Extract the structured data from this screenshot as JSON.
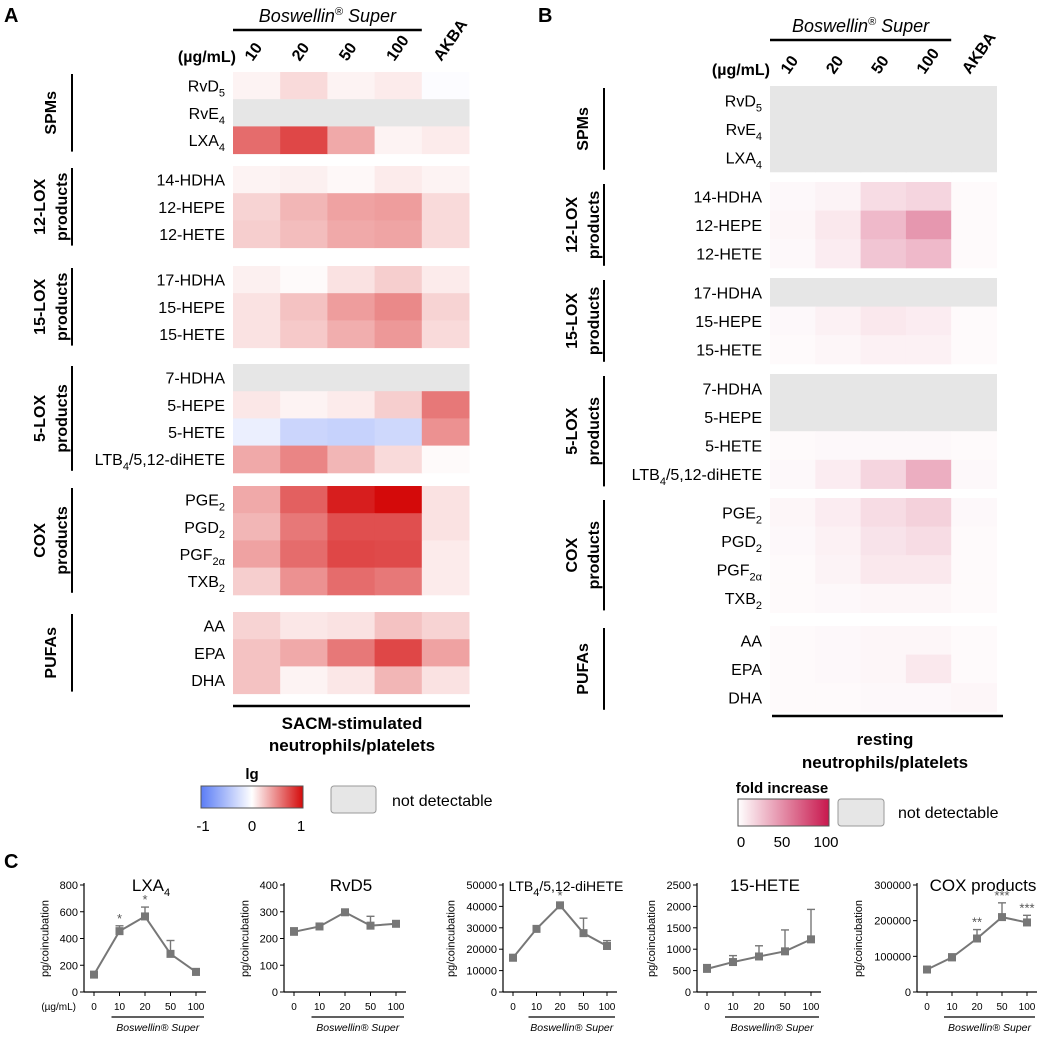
{
  "panel_labels": {
    "a": "A",
    "b": "B",
    "c": "C"
  },
  "header": {
    "brand": "Boswellin",
    "reg": "®",
    "brand_suffix": " Super",
    "unit": "(µg/mL)",
    "conc": [
      "10",
      "20",
      "50",
      "100"
    ],
    "akba": "AKBA"
  },
  "groups": [
    {
      "label": [
        "SPMs"
      ],
      "rows": [
        [
          "RvD",
          "5"
        ],
        [
          "RvE",
          "4"
        ],
        [
          "LXA",
          "4"
        ]
      ]
    },
    {
      "label": [
        "12-LOX",
        "products"
      ],
      "rows": [
        [
          "14-HDHA",
          ""
        ],
        [
          "12-HEPE",
          ""
        ],
        [
          "12-HETE",
          ""
        ]
      ]
    },
    {
      "label": [
        "15-LOX",
        "products"
      ],
      "rows": [
        [
          "17-HDHA",
          ""
        ],
        [
          "15-HEPE",
          ""
        ],
        [
          "15-HETE",
          ""
        ]
      ]
    },
    {
      "label": [
        "5-LOX",
        "products"
      ],
      "rows": [
        [
          "7-HDHA",
          ""
        ],
        [
          "5-HEPE",
          ""
        ],
        [
          "5-HETE",
          ""
        ],
        [
          "LTB",
          "4",
          "/5,12-diHETE"
        ]
      ]
    },
    {
      "label": [
        "COX",
        "products"
      ],
      "rows": [
        [
          "PGE",
          "2"
        ],
        [
          "PGD",
          "2"
        ],
        [
          "PGF",
          "2α"
        ],
        [
          "TXB",
          "2"
        ]
      ]
    },
    {
      "label": [
        "PUFAs"
      ],
      "rows": [
        [
          "AA",
          ""
        ],
        [
          "EPA",
          ""
        ],
        [
          "DHA",
          ""
        ]
      ]
    }
  ],
  "panel_a": {
    "footer": [
      "SACM-stimulated",
      "neutrophils/platelets"
    ],
    "legend_title": "lg",
    "legend_ticks": [
      "-1",
      "0",
      "1"
    ],
    "nd_label": "not detectable"
  },
  "panel_b": {
    "footer": [
      "resting",
      "neutrophils/platelets"
    ],
    "legend_title": "fold increase",
    "legend_ticks": [
      "0",
      "50",
      "100"
    ],
    "nd_label": "not detectable"
  },
  "colors": {
    "neg": "#5b7df5",
    "mid": "#ffffff",
    "pos": "#d40a0a",
    "nd": "#e6e6e6",
    "fold_high": "#c8174d",
    "line": "#777777"
  },
  "chart_data": [
    {
      "type": "heatmap",
      "title": "SACM-stimulated neutrophils/platelets",
      "columns": [
        "10",
        "20",
        "50",
        "100",
        "AKBA"
      ],
      "scale": {
        "label": "lg",
        "min": -1,
        "max": 1
      },
      "rows": [
        "RvD5",
        "RvE4",
        "LXA4",
        "14-HDHA",
        "12-HEPE",
        "12-HETE",
        "17-HDHA",
        "15-HEPE",
        "15-HETE",
        "7-HDHA",
        "5-HEPE",
        "5-HETE",
        "LTB4/5,12-diHETE",
        "PGE2",
        "PGD2",
        "PGF2α",
        "TXB2",
        "AA",
        "EPA",
        "DHA"
      ],
      "values": [
        [
          0.05,
          0.15,
          0.05,
          0.08,
          -0.02
        ],
        [
          null,
          null,
          null,
          null,
          null
        ],
        [
          0.6,
          0.75,
          0.35,
          0.05,
          0.08
        ],
        [
          0.05,
          0.06,
          0.03,
          0.08,
          0.05
        ],
        [
          0.18,
          0.3,
          0.38,
          0.4,
          0.15
        ],
        [
          0.2,
          0.27,
          0.35,
          0.37,
          0.15
        ],
        [
          0.06,
          0.02,
          0.12,
          0.2,
          0.08
        ],
        [
          0.12,
          0.25,
          0.4,
          0.48,
          0.18
        ],
        [
          0.12,
          0.22,
          0.33,
          0.42,
          0.15
        ],
        [
          null,
          null,
          null,
          null,
          null
        ],
        [
          0.1,
          0.05,
          0.08,
          0.2,
          0.55
        ],
        [
          -0.12,
          -0.32,
          -0.35,
          -0.3,
          0.45
        ],
        [
          0.35,
          0.5,
          0.3,
          0.15,
          0.02
        ],
        [
          0.35,
          0.65,
          0.92,
          1.0,
          0.12
        ],
        [
          0.3,
          0.55,
          0.72,
          0.72,
          0.12
        ],
        [
          0.38,
          0.6,
          0.75,
          0.74,
          0.08
        ],
        [
          0.2,
          0.45,
          0.6,
          0.55,
          0.08
        ],
        [
          0.18,
          0.1,
          0.12,
          0.25,
          0.18
        ],
        [
          0.25,
          0.35,
          0.55,
          0.75,
          0.38
        ],
        [
          0.25,
          0.05,
          0.1,
          0.3,
          0.12
        ]
      ]
    },
    {
      "type": "heatmap",
      "title": "resting neutrophils/platelets",
      "columns": [
        "10",
        "20",
        "50",
        "100",
        "AKBA"
      ],
      "scale": {
        "label": "fold increase",
        "min": 0,
        "max": 100
      },
      "rows": [
        "RvD5",
        "RvE4",
        "LXA4",
        "14-HDHA",
        "12-HEPE",
        "12-HETE",
        "17-HDHA",
        "15-HEPE",
        "15-HETE",
        "7-HDHA",
        "5-HEPE",
        "5-HETE",
        "LTB4/5,12-diHETE",
        "PGE2",
        "PGD2",
        "PGF2α",
        "TXB2",
        "AA",
        "EPA",
        "DHA"
      ],
      "values": [
        [
          null,
          null,
          null,
          null,
          null
        ],
        [
          null,
          null,
          null,
          null,
          null
        ],
        [
          null,
          null,
          null,
          null,
          null
        ],
        [
          3,
          5,
          15,
          18,
          2
        ],
        [
          4,
          10,
          30,
          45,
          2
        ],
        [
          3,
          8,
          25,
          30,
          2
        ],
        [
          null,
          null,
          null,
          null,
          null
        ],
        [
          3,
          6,
          10,
          8,
          2
        ],
        [
          2,
          4,
          6,
          6,
          2
        ],
        [
          null,
          null,
          null,
          null,
          null
        ],
        [
          null,
          null,
          null,
          null,
          null
        ],
        [
          2,
          3,
          3,
          3,
          2
        ],
        [
          3,
          8,
          18,
          35,
          3
        ],
        [
          4,
          8,
          15,
          20,
          3
        ],
        [
          3,
          6,
          12,
          15,
          2
        ],
        [
          2,
          5,
          10,
          10,
          2
        ],
        [
          2,
          3,
          4,
          4,
          2
        ],
        [
          2,
          3,
          4,
          4,
          2
        ],
        [
          2,
          3,
          4,
          10,
          2
        ],
        [
          2,
          2,
          3,
          3,
          4
        ]
      ]
    },
    {
      "type": "line",
      "title": "LXA4",
      "title_parts": [
        "LXA",
        "4"
      ],
      "x": [
        "0",
        "10",
        "20",
        "50",
        "100"
      ],
      "y": [
        130,
        455,
        565,
        285,
        150
      ],
      "err": [
        15,
        40,
        70,
        100,
        25
      ],
      "stars": [
        "",
        "*",
        "*",
        "",
        ""
      ],
      "ylim": [
        0,
        800
      ],
      "yticks": [
        0,
        200,
        400,
        600,
        800
      ],
      "ylabel": "pg/coincubation",
      "xunit": "(µg/mL)",
      "xgroup": "Boswellin® Super"
    },
    {
      "type": "line",
      "title": "RvD5",
      "title_parts": [
        "RvD5",
        ""
      ],
      "x": [
        "0",
        "10",
        "20",
        "50",
        "100"
      ],
      "y": [
        225,
        245,
        298,
        248,
        255
      ],
      "err": [
        15,
        10,
        8,
        35,
        8
      ],
      "stars": [
        "",
        "",
        "",
        "",
        ""
      ],
      "ylim": [
        0,
        400
      ],
      "yticks": [
        0,
        100,
        200,
        300,
        400
      ],
      "ylabel": "pg/coincubation",
      "xunit": "",
      "xgroup": "Boswellin® Super"
    },
    {
      "type": "line",
      "title": "LTB4/5,12-diHETE",
      "title_parts": [
        "LTB",
        "4",
        "/5,12-diHETE"
      ],
      "x": [
        "0",
        "10",
        "20",
        "50",
        "100"
      ],
      "y": [
        16000,
        29500,
        40500,
        27500,
        21500
      ],
      "err": [
        1500,
        1200,
        1200,
        7000,
        2500
      ],
      "stars": [
        "",
        "",
        "*",
        "",
        ""
      ],
      "ylim": [
        0,
        50000
      ],
      "yticks": [
        0,
        10000,
        20000,
        30000,
        40000,
        50000
      ],
      "ylabel": "pg/coincubation",
      "xunit": "",
      "xgroup": "Boswellin® Super"
    },
    {
      "type": "line",
      "title": "15-HETE",
      "title_parts": [
        "15-HETE",
        ""
      ],
      "x": [
        "0",
        "10",
        "20",
        "50",
        "100"
      ],
      "y": [
        540,
        700,
        830,
        950,
        1230
      ],
      "err": [
        100,
        150,
        250,
        500,
        700
      ],
      "stars": [
        "",
        "",
        "",
        "",
        ""
      ],
      "ylim": [
        0,
        2500
      ],
      "yticks": [
        0,
        500,
        1000,
        1500,
        2000,
        2500
      ],
      "ylabel": "pg/coincubation",
      "xunit": "",
      "xgroup": "Boswellin® Super"
    },
    {
      "type": "line",
      "title": "COX products",
      "title_parts": [
        "COX products",
        ""
      ],
      "x": [
        "0",
        "10",
        "20",
        "50",
        "100"
      ],
      "y": [
        63000,
        97000,
        150000,
        210000,
        195000
      ],
      "err": [
        5000,
        10000,
        25000,
        40000,
        20000
      ],
      "stars": [
        "",
        "",
        "**",
        "***",
        "***"
      ],
      "ylim": [
        0,
        300000
      ],
      "yticks": [
        0,
        100000,
        200000,
        300000
      ],
      "ylabel": "pg/coincubation",
      "xunit": "",
      "xgroup": "Boswellin® Super"
    }
  ]
}
